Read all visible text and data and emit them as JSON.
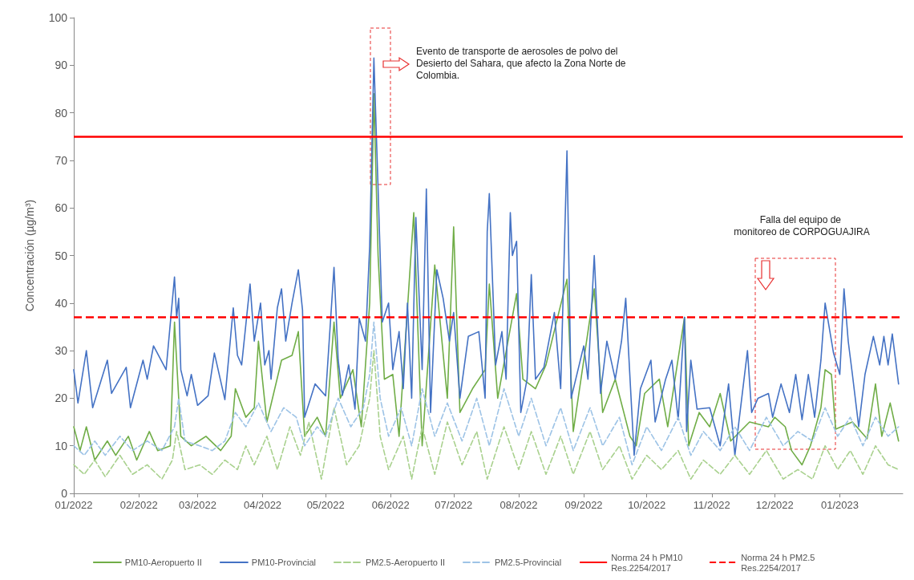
{
  "chart_data": {
    "type": "line",
    "ylabel": "Concentración (µg/m³)",
    "xlim": [
      "2022-01-01",
      "2023-01-31"
    ],
    "xticks": [
      {
        "value": "2022-01-01",
        "label": "01/2022"
      },
      {
        "value": "2022-02-01",
        "label": "02/2022"
      },
      {
        "value": "2022-03-01",
        "label": "03/2022"
      },
      {
        "value": "2022-04-01",
        "label": "04/2022"
      },
      {
        "value": "2022-05-01",
        "label": "05/2022"
      },
      {
        "value": "2022-06-01",
        "label": "06/2022"
      },
      {
        "value": "2022-07-01",
        "label": "07/2022"
      },
      {
        "value": "2022-08-01",
        "label": "08/2022"
      },
      {
        "value": "2022-09-01",
        "label": "09/2022"
      },
      {
        "value": "2022-10-01",
        "label": "10/2022"
      },
      {
        "value": "2022-11-01",
        "label": "11/2022"
      },
      {
        "value": "2022-12-01",
        "label": "12/2022"
      },
      {
        "value": "2023-01-01",
        "label": "01/2023"
      }
    ],
    "ylim": [
      0,
      100
    ],
    "yticks": [
      0,
      10,
      20,
      30,
      40,
      50,
      60,
      70,
      80,
      90,
      100
    ],
    "grid": false,
    "marker": "none",
    "legend": "bottom",
    "series": [
      {
        "name": "PM10-Aeropuerto II",
        "color": "#70ad47",
        "line_style": "solid",
        "x": [
          "2022-01-01",
          "2022-01-04",
          "2022-01-07",
          "2022-01-11",
          "2022-01-17",
          "2022-01-21",
          "2022-01-27",
          "2022-01-31",
          "2022-02-06",
          "2022-02-10",
          "2022-02-16",
          "2022-02-18",
          "2022-02-21",
          "2022-02-26",
          "2022-03-05",
          "2022-03-12",
          "2022-03-17",
          "2022-03-19",
          "2022-03-24",
          "2022-03-28",
          "2022-03-30",
          "2022-04-03",
          "2022-04-10",
          "2022-04-15",
          "2022-04-18",
          "2022-04-21",
          "2022-04-27",
          "2022-05-01",
          "2022-05-05",
          "2022-05-08",
          "2022-05-14",
          "2022-05-18",
          "2022-05-22",
          "2022-05-24",
          "2022-05-26",
          "2022-05-29",
          "2022-06-02",
          "2022-06-05",
          "2022-06-12",
          "2022-06-14",
          "2022-06-16",
          "2022-06-22",
          "2022-06-28",
          "2022-07-01",
          "2022-07-04",
          "2022-07-10",
          "2022-07-16",
          "2022-07-18",
          "2022-07-22",
          "2022-07-31",
          "2022-08-03",
          "2022-08-09",
          "2022-08-14",
          "2022-08-24",
          "2022-08-27",
          "2022-09-06",
          "2022-09-10",
          "2022-09-16",
          "2022-09-23",
          "2022-09-26",
          "2022-09-30",
          "2022-10-07",
          "2022-10-11",
          "2022-10-19",
          "2022-10-21",
          "2022-10-26",
          "2022-10-31",
          "2022-11-05",
          "2022-11-10",
          "2022-11-19",
          "2022-11-28",
          "2022-12-01",
          "2022-12-06",
          "2022-12-09",
          "2022-12-14",
          "2022-12-18",
          "2022-12-23",
          "2022-12-25",
          "2022-12-28",
          "2022-12-30",
          "2023-01-07",
          "2023-01-14",
          "2023-01-18",
          "2023-01-21",
          "2023-01-25",
          "2023-01-29"
        ],
        "values": [
          14,
          9,
          14,
          7,
          11,
          8,
          12,
          7,
          13,
          9,
          10,
          36,
          12,
          10,
          12,
          9,
          12,
          22,
          16,
          18,
          32,
          15,
          28,
          29,
          34,
          12,
          16,
          12,
          36,
          20,
          26,
          14,
          40,
          84,
          50,
          24,
          25,
          12,
          59,
          34,
          10,
          48,
          20,
          56,
          17,
          22,
          26,
          44,
          20,
          42,
          24,
          22,
          27,
          45,
          13,
          43,
          17,
          24,
          12,
          10,
          21,
          24,
          14,
          37,
          10,
          17,
          14,
          21,
          11,
          15,
          14,
          16,
          14,
          9,
          6,
          10,
          18,
          26,
          25,
          13.5,
          15,
          11.5,
          23,
          12,
          19,
          11
        ]
      },
      {
        "name": "PM10-Provincial",
        "color": "#4472c4",
        "line_style": "solid",
        "x": [
          "2022-01-01",
          "2022-01-03",
          "2022-01-07",
          "2022-01-10",
          "2022-01-17",
          "2022-01-19",
          "2022-01-26",
          "2022-01-28",
          "2022-02-03",
          "2022-02-05",
          "2022-02-08",
          "2022-02-14",
          "2022-02-18",
          "2022-02-19",
          "2022-02-20",
          "2022-02-21",
          "2022-02-24",
          "2022-02-26",
          "2022-03-01",
          "2022-03-06",
          "2022-03-09",
          "2022-03-14",
          "2022-03-18",
          "2022-03-20",
          "2022-03-22",
          "2022-03-26",
          "2022-03-28",
          "2022-03-31",
          "2022-04-02",
          "2022-04-04",
          "2022-04-05",
          "2022-04-08",
          "2022-04-10",
          "2022-04-12",
          "2022-04-15",
          "2022-04-18",
          "2022-04-20",
          "2022-04-21",
          "2022-04-26",
          "2022-05-01",
          "2022-05-05",
          "2022-05-07",
          "2022-05-09",
          "2022-05-12",
          "2022-05-15",
          "2022-05-17",
          "2022-05-20",
          "2022-05-22",
          "2022-05-24",
          "2022-05-26",
          "2022-05-28",
          "2022-05-31",
          "2022-06-02",
          "2022-06-05",
          "2022-06-07",
          "2022-06-09",
          "2022-06-11",
          "2022-06-13",
          "2022-06-16",
          "2022-06-18",
          "2022-06-20",
          "2022-06-23",
          "2022-06-26",
          "2022-06-29",
          "2022-07-01",
          "2022-07-04",
          "2022-07-08",
          "2022-07-13",
          "2022-07-16",
          "2022-07-17",
          "2022-07-18",
          "2022-07-21",
          "2022-07-24",
          "2022-07-26",
          "2022-07-28",
          "2022-07-29",
          "2022-07-31",
          "2022-08-02",
          "2022-08-05",
          "2022-08-07",
          "2022-08-09",
          "2022-08-13",
          "2022-08-18",
          "2022-08-21",
          "2022-08-24",
          "2022-08-26",
          "2022-09-01",
          "2022-09-03",
          "2022-09-06",
          "2022-09-09",
          "2022-09-12",
          "2022-09-16",
          "2022-09-19",
          "2022-09-21",
          "2022-09-25",
          "2022-09-28",
          "2022-10-03",
          "2022-10-05",
          "2022-10-10",
          "2022-10-13",
          "2022-10-16",
          "2022-10-19",
          "2022-10-20",
          "2022-10-22",
          "2022-10-25",
          "2022-10-31",
          "2022-11-05",
          "2022-11-09",
          "2022-11-12",
          "2022-11-18",
          "2022-11-20",
          "2022-11-23",
          "2022-11-28",
          "2022-11-30",
          "2022-12-04",
          "2022-12-08",
          "2022-12-11",
          "2022-12-14",
          "2022-12-17",
          "2022-12-20",
          "2022-12-23",
          "2022-12-25",
          "2022-12-29",
          "2023-01-01",
          "2023-01-03",
          "2023-01-05",
          "2023-01-07",
          "2023-01-10",
          "2023-01-13",
          "2023-01-17",
          "2023-01-20",
          "2023-01-22",
          "2023-01-24",
          "2023-01-26",
          "2023-01-29"
        ],
        "values": [
          26,
          19,
          30,
          18,
          28,
          21,
          26.5,
          18,
          28,
          24,
          31,
          26,
          45.5,
          37,
          41,
          26,
          20.5,
          25,
          18.5,
          20.5,
          29.5,
          19.7,
          39,
          29,
          27,
          44,
          32,
          40,
          27,
          30,
          24,
          39,
          43,
          32,
          40,
          47,
          38.5,
          16,
          23,
          20.5,
          47.5,
          28,
          20.6,
          27,
          17.7,
          36.8,
          32,
          52,
          91.5,
          64,
          36,
          40,
          26,
          34,
          22,
          40,
          20,
          58,
          26,
          64,
          17,
          47,
          41,
          32,
          38,
          20,
          33,
          34,
          20,
          55,
          63,
          27,
          34,
          24,
          59,
          50,
          53,
          17,
          24,
          46,
          24,
          26.5,
          38,
          22,
          72,
          20,
          31,
          24,
          50,
          21,
          32,
          24,
          32,
          41,
          8,
          22,
          28,
          15,
          24,
          28,
          15.5,
          37,
          13,
          28,
          17.7,
          18,
          10,
          23,
          8,
          30,
          17,
          20,
          21,
          16,
          23,
          17,
          25,
          15.5,
          25,
          16,
          28,
          40,
          29.5,
          25,
          43,
          32,
          25,
          14,
          25,
          33,
          27,
          33,
          27,
          33.5,
          23
        ]
      },
      {
        "name": "PM2.5-Aeropuerto II",
        "color": "#a9d18e",
        "line_style": "dashed",
        "x": [
          "2022-01-01",
          "2022-01-06",
          "2022-01-11",
          "2022-01-16",
          "2022-01-23",
          "2022-01-29",
          "2022-02-05",
          "2022-02-12",
          "2022-02-17",
          "2022-02-19",
          "2022-02-23",
          "2022-03-02",
          "2022-03-08",
          "2022-03-14",
          "2022-03-20",
          "2022-03-24",
          "2022-03-28",
          "2022-04-03",
          "2022-04-08",
          "2022-04-14",
          "2022-04-19",
          "2022-04-23",
          "2022-04-29",
          "2022-05-05",
          "2022-05-11",
          "2022-05-17",
          "2022-05-22",
          "2022-05-24",
          "2022-05-27",
          "2022-05-31",
          "2022-06-07",
          "2022-06-11",
          "2022-06-16",
          "2022-06-22",
          "2022-06-28",
          "2022-07-05",
          "2022-07-12",
          "2022-07-17",
          "2022-07-25",
          "2022-08-01",
          "2022-08-07",
          "2022-08-14",
          "2022-08-21",
          "2022-08-27",
          "2022-09-04",
          "2022-09-10",
          "2022-09-18",
          "2022-09-24",
          "2022-10-01",
          "2022-10-08",
          "2022-10-16",
          "2022-10-22",
          "2022-10-28",
          "2022-11-05",
          "2022-11-12",
          "2022-11-19",
          "2022-11-27",
          "2022-12-05",
          "2022-12-12",
          "2022-12-19",
          "2022-12-25",
          "2022-12-31",
          "2023-01-06",
          "2023-01-12",
          "2023-01-18",
          "2023-01-24",
          "2023-01-29"
        ],
        "values": [
          6,
          4,
          7,
          3.5,
          8,
          4,
          6,
          3,
          7,
          13,
          5,
          6,
          4,
          7,
          5,
          10,
          6,
          12,
          5,
          14,
          8,
          15,
          3,
          18,
          6,
          10,
          20,
          30,
          12,
          5,
          12,
          3,
          14,
          4,
          15,
          6,
          13,
          3,
          14,
          5,
          13,
          4,
          12,
          4,
          13,
          5,
          10,
          3,
          8,
          5,
          9,
          3,
          7,
          4,
          8,
          4,
          9,
          3,
          5,
          3,
          10,
          5,
          9,
          4,
          10,
          6,
          5
        ]
      },
      {
        "name": "PM2.5-Provincial",
        "color": "#9dc3e6",
        "line_style": "dashed",
        "x": [
          "2022-01-01",
          "2022-01-06",
          "2022-01-11",
          "2022-01-16",
          "2022-01-23",
          "2022-01-29",
          "2022-02-05",
          "2022-02-12",
          "2022-02-18",
          "2022-02-20",
          "2022-02-23",
          "2022-03-02",
          "2022-03-08",
          "2022-03-14",
          "2022-03-19",
          "2022-03-24",
          "2022-03-30",
          "2022-04-05",
          "2022-04-11",
          "2022-04-17",
          "2022-04-21",
          "2022-04-27",
          "2022-05-01",
          "2022-05-07",
          "2022-05-13",
          "2022-05-19",
          "2022-05-22",
          "2022-05-24",
          "2022-05-27",
          "2022-05-31",
          "2022-06-06",
          "2022-06-11",
          "2022-06-16",
          "2022-06-22",
          "2022-06-28",
          "2022-07-05",
          "2022-07-12",
          "2022-07-18",
          "2022-07-25",
          "2022-08-01",
          "2022-08-07",
          "2022-08-14",
          "2022-08-21",
          "2022-08-27",
          "2022-09-04",
          "2022-09-10",
          "2022-09-18",
          "2022-09-24",
          "2022-10-01",
          "2022-10-08",
          "2022-10-16",
          "2022-10-22",
          "2022-10-28",
          "2022-11-05",
          "2022-11-12",
          "2022-11-19",
          "2022-11-27",
          "2022-12-05",
          "2022-12-12",
          "2022-12-19",
          "2022-12-25",
          "2022-12-31",
          "2023-01-06",
          "2023-01-12",
          "2023-01-18",
          "2023-01-24",
          "2023-01-29"
        ],
        "values": [
          10,
          8,
          11,
          8,
          12,
          9,
          11,
          9,
          14,
          20,
          11,
          10,
          9,
          11,
          17,
          14,
          19,
          13,
          18,
          16,
          10,
          14,
          12,
          20,
          14,
          18,
          25,
          36,
          20,
          12,
          18,
          10,
          22,
          12,
          19,
          11,
          20,
          10,
          22,
          12,
          20,
          10,
          18,
          9,
          18,
          10,
          16,
          6,
          14,
          9,
          16,
          8,
          13,
          9,
          14,
          9,
          16,
          10,
          13,
          11,
          18,
          12,
          16,
          10,
          16,
          12,
          14
        ]
      }
    ],
    "ref_lines": [
      {
        "axis": "y",
        "value": 75,
        "label": "Norma 24 h PM10 Res.2254/2017",
        "color": "#ff0000",
        "line_style": "solid"
      },
      {
        "axis": "y",
        "value": 37,
        "label": "Norma 24 h PM2.5 Res.2254/2017",
        "color": "#ff0000",
        "line_style": "dashed"
      }
    ],
    "annotations": [
      "Evento de transporte de aerosoles de polvo del Desierto del Sahara, que afecto la Zona Norte de Colombia.",
      "Falla del equipo de monitoreo de CORPOGUAJIRA"
    ]
  }
}
